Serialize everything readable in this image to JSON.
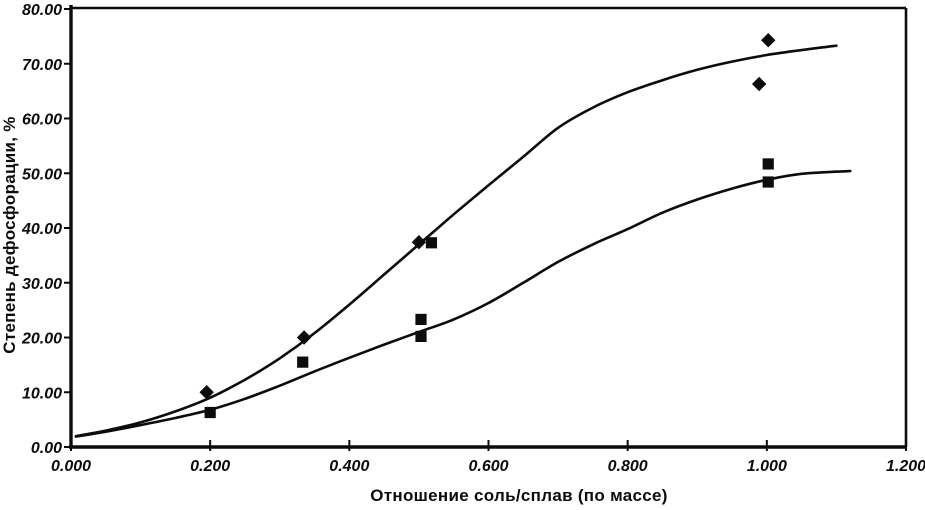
{
  "figure": {
    "background": "#ffffff",
    "ink": "#0c0c0c"
  },
  "chart_data": {
    "type": "scatter",
    "title": "",
    "xlabel": "Отношение соль/сплав (по массе)",
    "ylabel": "Степень дефосфорации, %",
    "xlim": [
      0,
      1.2
    ],
    "ylim": [
      0,
      80
    ],
    "grid": false,
    "legend": "none",
    "x_ticks": [
      {
        "value": 0.0,
        "label": "0.000"
      },
      {
        "value": 0.2,
        "label": "0.200"
      },
      {
        "value": 0.4,
        "label": "0.400"
      },
      {
        "value": 0.6,
        "label": "0.600"
      },
      {
        "value": 0.8,
        "label": "0.800"
      },
      {
        "value": 1.0,
        "label": "1.000"
      },
      {
        "value": 1.2,
        "label": "1.200"
      }
    ],
    "y_ticks": [
      {
        "value": 0,
        "label": "0.00"
      },
      {
        "value": 10,
        "label": "10.00"
      },
      {
        "value": 20,
        "label": "20.00"
      },
      {
        "value": 30,
        "label": "30.00"
      },
      {
        "value": 40,
        "label": "40.00"
      },
      {
        "value": 50,
        "label": "50.00"
      },
      {
        "value": 60,
        "label": "60.00"
      },
      {
        "value": 70,
        "label": "70.00"
      },
      {
        "value": 80,
        "label": "80.00"
      }
    ],
    "series": [
      {
        "name": "diamond-series",
        "marker": "diamond",
        "points": [
          [
            0.195,
            10.0
          ],
          [
            0.335,
            20.0
          ],
          [
            0.5,
            37.4
          ],
          [
            0.989,
            66.3
          ],
          [
            1.002,
            74.3
          ]
        ]
      },
      {
        "name": "square-series",
        "marker": "square",
        "points": [
          [
            0.2,
            6.3
          ],
          [
            0.333,
            15.5
          ],
          [
            0.503,
            23.3
          ],
          [
            0.503,
            20.2
          ],
          [
            0.518,
            37.3
          ],
          [
            1.002,
            51.7
          ],
          [
            1.002,
            48.4
          ]
        ]
      }
    ],
    "trend_curves": [
      {
        "name": "upper-trend",
        "points": [
          [
            0.007,
            2.0
          ],
          [
            0.05,
            3.0
          ],
          [
            0.1,
            4.5
          ],
          [
            0.15,
            6.5
          ],
          [
            0.2,
            9.0
          ],
          [
            0.25,
            12.3
          ],
          [
            0.3,
            16.2
          ],
          [
            0.35,
            20.8
          ],
          [
            0.4,
            26.0
          ],
          [
            0.45,
            31.5
          ],
          [
            0.5,
            37.0
          ],
          [
            0.55,
            42.5
          ],
          [
            0.6,
            47.8
          ],
          [
            0.65,
            53.0
          ],
          [
            0.7,
            58.3
          ],
          [
            0.75,
            62.0
          ],
          [
            0.8,
            64.8
          ],
          [
            0.85,
            67.0
          ],
          [
            0.9,
            68.9
          ],
          [
            0.95,
            70.4
          ],
          [
            1.0,
            71.6
          ],
          [
            1.05,
            72.5
          ],
          [
            1.1,
            73.3
          ]
        ]
      },
      {
        "name": "lower-trend",
        "points": [
          [
            0.007,
            1.9
          ],
          [
            0.05,
            2.8
          ],
          [
            0.1,
            4.0
          ],
          [
            0.15,
            5.3
          ],
          [
            0.2,
            6.8
          ],
          [
            0.25,
            8.8
          ],
          [
            0.3,
            11.2
          ],
          [
            0.35,
            13.8
          ],
          [
            0.4,
            16.3
          ],
          [
            0.45,
            18.7
          ],
          [
            0.5,
            21.0
          ],
          [
            0.55,
            23.3
          ],
          [
            0.6,
            26.3
          ],
          [
            0.65,
            30.0
          ],
          [
            0.7,
            33.8
          ],
          [
            0.75,
            37.0
          ],
          [
            0.8,
            39.8
          ],
          [
            0.85,
            42.8
          ],
          [
            0.9,
            45.2
          ],
          [
            0.95,
            47.2
          ],
          [
            1.0,
            48.8
          ],
          [
            1.05,
            49.9
          ],
          [
            1.12,
            50.4
          ]
        ]
      }
    ]
  }
}
